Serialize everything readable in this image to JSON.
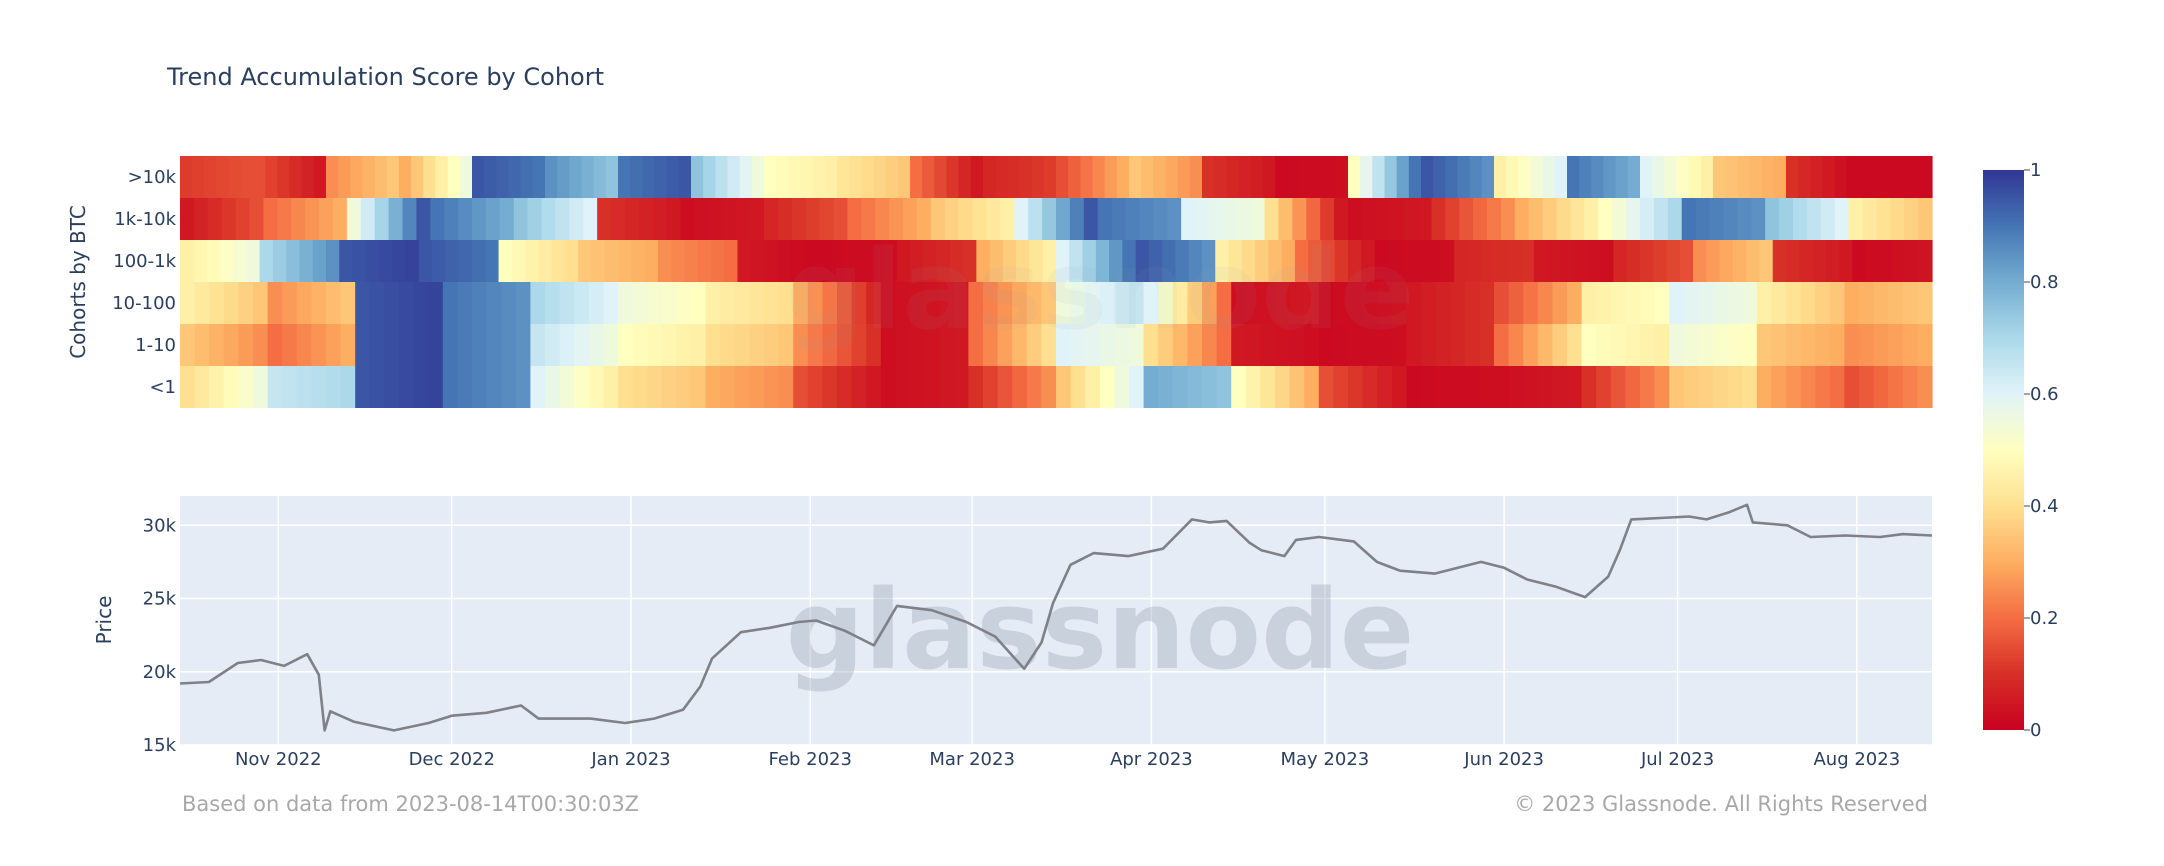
{
  "chart_data": [
    {
      "type": "heatmap",
      "title": "Trend Accumulation Score by Cohort",
      "ylabel": "Cohorts by BTC",
      "y_categories": [
        ">10k",
        "1k-10k",
        "100-1k",
        "10-100",
        "1-10",
        "<1"
      ],
      "x_range": [
        "2022-10-15",
        "2023-08-14"
      ],
      "colorscale": "RdYlBu",
      "zlim": [
        0,
        1
      ],
      "colorbar_ticks": [
        "1",
        "0.8",
        "0.6",
        "0.4",
        "0.2",
        "0"
      ],
      "segments": {
        ">10k": [
          [
            0.12,
            0.15
          ],
          [
            0.15,
            0.05
          ],
          [
            0.25,
            0.35
          ],
          [
            0.3,
            0.55
          ],
          [
            0.95,
            0.9
          ],
          [
            0.85,
            0.75
          ],
          [
            0.9,
            0.95
          ],
          [
            0.75,
            0.55
          ],
          [
            0.5,
            0.45
          ],
          [
            0.42,
            0.35
          ],
          [
            0.2,
            0.05
          ],
          [
            0.08,
            0.12
          ],
          [
            0.15,
            0.3
          ],
          [
            0.35,
            0.25
          ],
          [
            0.1,
            0.05
          ],
          [
            0.02,
            0.03
          ],
          [
            0.5,
            0.9
          ],
          [
            0.95,
            0.85
          ],
          [
            0.45,
            0.6
          ],
          [
            0.9,
            0.8
          ],
          [
            0.6,
            0.45
          ],
          [
            0.35,
            0.3
          ],
          [
            0.1,
            0.02
          ],
          [
            0.02,
            0.02
          ]
        ],
        "1k-10k": [
          [
            0.05,
            0.15
          ],
          [
            0.2,
            0.3
          ],
          [
            0.55,
            0.95
          ],
          [
            0.9,
            0.8
          ],
          [
            0.75,
            0.6
          ],
          [
            0.1,
            0.05
          ],
          [
            0.03,
            0.05
          ],
          [
            0.08,
            0.15
          ],
          [
            0.2,
            0.3
          ],
          [
            0.35,
            0.45
          ],
          [
            0.6,
            0.95
          ],
          [
            0.9,
            0.85
          ],
          [
            0.6,
            0.55
          ],
          [
            0.4,
            0.05
          ],
          [
            0.03,
            0.05
          ],
          [
            0.1,
            0.25
          ],
          [
            0.3,
            0.45
          ],
          [
            0.5,
            0.7
          ],
          [
            0.9,
            0.85
          ],
          [
            0.75,
            0.6
          ],
          [
            0.45,
            0.35
          ]
        ],
        "100-1k": [
          [
            0.45,
            0.55
          ],
          [
            0.7,
            0.85
          ],
          [
            0.95,
            0.98
          ],
          [
            0.95,
            0.9
          ],
          [
            0.5,
            0.4
          ],
          [
            0.35,
            0.3
          ],
          [
            0.25,
            0.2
          ],
          [
            0.05,
            0.02
          ],
          [
            0.02,
            0.03
          ],
          [
            0.05,
            0.1
          ],
          [
            0.3,
            0.45
          ],
          [
            0.6,
            0.9
          ],
          [
            0.95,
            0.85
          ],
          [
            0.45,
            0.3
          ],
          [
            0.2,
            0.05
          ],
          [
            0.02,
            0.03
          ],
          [
            0.08,
            0.1
          ],
          [
            0.05,
            0.03
          ],
          [
            0.08,
            0.15
          ],
          [
            0.25,
            0.35
          ],
          [
            0.1,
            0.05
          ],
          [
            0.02,
            0.04
          ]
        ],
        "10-100": [
          [
            0.45,
            0.35
          ],
          [
            0.25,
            0.35
          ],
          [
            0.95,
            0.98
          ],
          [
            0.9,
            0.85
          ],
          [
            0.7,
            0.6
          ],
          [
            0.55,
            0.5
          ],
          [
            0.45,
            0.4
          ],
          [
            0.3,
            0.08
          ],
          [
            0.03,
            0.05
          ],
          [
            0.2,
            0.35
          ],
          [
            0.55,
            0.65
          ],
          [
            0.6,
            0.2
          ],
          [
            0.03,
            0.05
          ],
          [
            0.02,
            0.04
          ],
          [
            0.05,
            0.1
          ],
          [
            0.15,
            0.3
          ],
          [
            0.45,
            0.5
          ],
          [
            0.6,
            0.55
          ],
          [
            0.45,
            0.35
          ],
          [
            0.3,
            0.35
          ]
        ],
        "1-10": [
          [
            0.35,
            0.25
          ],
          [
            0.2,
            0.3
          ],
          [
            0.95,
            0.98
          ],
          [
            0.9,
            0.85
          ],
          [
            0.65,
            0.55
          ],
          [
            0.5,
            0.45
          ],
          [
            0.4,
            0.35
          ],
          [
            0.25,
            0.1
          ],
          [
            0.03,
            0.05
          ],
          [
            0.2,
            0.4
          ],
          [
            0.6,
            0.55
          ],
          [
            0.4,
            0.2
          ],
          [
            0.05,
            0.03
          ],
          [
            0.02,
            0.03
          ],
          [
            0.05,
            0.1
          ],
          [
            0.2,
            0.4
          ],
          [
            0.5,
            0.45
          ],
          [
            0.55,
            0.5
          ],
          [
            0.35,
            0.3
          ],
          [
            0.25,
            0.3
          ]
        ],
        "<1": [
          [
            0.4,
            0.55
          ],
          [
            0.65,
            0.7
          ],
          [
            0.95,
            0.98
          ],
          [
            0.9,
            0.85
          ],
          [
            0.6,
            0.45
          ],
          [
            0.4,
            0.35
          ],
          [
            0.3,
            0.25
          ],
          [
            0.15,
            0.05
          ],
          [
            0.03,
            0.05
          ],
          [
            0.1,
            0.25
          ],
          [
            0.35,
            0.6
          ],
          [
            0.8,
            0.75
          ],
          [
            0.5,
            0.3
          ],
          [
            0.15,
            0.05
          ],
          [
            0.02,
            0.03
          ],
          [
            0.03,
            0.05
          ],
          [
            0.1,
            0.25
          ],
          [
            0.35,
            0.4
          ],
          [
            0.3,
            0.2
          ],
          [
            0.15,
            0.25
          ]
        ]
      }
    },
    {
      "type": "line",
      "ylabel": "Price",
      "y_ticks": [
        "30k",
        "25k",
        "20k",
        "15k"
      ],
      "ylim": [
        15000,
        32000
      ],
      "x_ticks": [
        "Nov 2022",
        "Dec 2022",
        "Jan 2023",
        "Feb 2023",
        "Mar 2023",
        "Apr 2023",
        "May 2023",
        "Jun 2023",
        "Jul 2023",
        "Aug 2023"
      ],
      "series": [
        {
          "x": [
            "2022-10-15",
            "2022-10-20",
            "2022-10-25",
            "2022-10-29",
            "2022-11-02",
            "2022-11-06",
            "2022-11-08",
            "2022-11-09",
            "2022-11-10",
            "2022-11-14",
            "2022-11-21",
            "2022-11-27",
            "2022-12-01",
            "2022-12-07",
            "2022-12-13",
            "2022-12-16",
            "2022-12-20",
            "2022-12-25",
            "2022-12-31",
            "2023-01-05",
            "2023-01-10",
            "2023-01-13",
            "2023-01-15",
            "2023-01-20",
            "2023-01-25",
            "2023-01-30",
            "2023-02-02",
            "2023-02-07",
            "2023-02-12",
            "2023-02-16",
            "2023-02-22",
            "2023-02-28",
            "2023-03-05",
            "2023-03-10",
            "2023-03-13",
            "2023-03-15",
            "2023-03-18",
            "2023-03-22",
            "2023-03-28",
            "2023-04-03",
            "2023-04-08",
            "2023-04-11",
            "2023-04-14",
            "2023-04-18",
            "2023-04-20",
            "2023-04-24",
            "2023-04-26",
            "2023-04-30",
            "2023-05-06",
            "2023-05-10",
            "2023-05-14",
            "2023-05-20",
            "2023-05-28",
            "2023-06-01",
            "2023-06-05",
            "2023-06-10",
            "2023-06-15",
            "2023-06-19",
            "2023-06-21",
            "2023-06-23",
            "2023-06-28",
            "2023-07-03",
            "2023-07-06",
            "2023-07-10",
            "2023-07-13",
            "2023-07-14",
            "2023-07-20",
            "2023-07-24",
            "2023-07-30",
            "2023-08-05",
            "2023-08-09",
            "2023-08-14"
          ],
          "y": [
            19200,
            19300,
            20600,
            20800,
            20400,
            21200,
            19800,
            16000,
            17300,
            16600,
            16000,
            16500,
            17000,
            17200,
            17700,
            16800,
            16800,
            16800,
            16500,
            16800,
            17400,
            19000,
            20900,
            22700,
            23000,
            23400,
            23500,
            22800,
            21800,
            24500,
            24200,
            23400,
            22400,
            20200,
            22000,
            24700,
            27300,
            28100,
            27900,
            28400,
            30400,
            30200,
            30300,
            28800,
            28300,
            27900,
            29000,
            29200,
            28900,
            27500,
            26900,
            26700,
            27500,
            27100,
            26300,
            25800,
            25100,
            26500,
            28300,
            30400,
            30500,
            30600,
            30400,
            30900,
            31400,
            30200,
            30000,
            29200,
            29300,
            29200,
            29400,
            29300
          ]
        }
      ]
    }
  ],
  "footer": {
    "source": "Based on data from 2023-08-14T00:30:03Z",
    "copyright": "© 2023 Glassnode. All Rights Reserved"
  },
  "watermark": "glassnode"
}
